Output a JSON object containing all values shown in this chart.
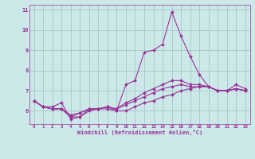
{
  "xlabel": "Windchill (Refroidissement éolien,°C)",
  "ylabel": "",
  "background_color": "#cce8e8",
  "line_color": "#993399",
  "grid_color": "#aacccc",
  "xlim": [
    -0.5,
    23.5
  ],
  "ylim": [
    5.35,
    11.25
  ],
  "yticks": [
    6,
    7,
    8,
    9,
    10,
    11
  ],
  "xticks": [
    0,
    1,
    2,
    3,
    4,
    5,
    6,
    7,
    8,
    9,
    10,
    11,
    12,
    13,
    14,
    15,
    16,
    17,
    18,
    19,
    20,
    21,
    22,
    23
  ],
  "series": [
    [
      6.5,
      6.2,
      6.2,
      6.4,
      5.6,
      5.7,
      6.1,
      6.1,
      6.1,
      6.0,
      7.3,
      7.5,
      8.9,
      9.0,
      9.3,
      10.9,
      9.7,
      8.7,
      7.8,
      7.2,
      7.0,
      7.0,
      7.3,
      7.1
    ],
    [
      6.5,
      6.2,
      6.1,
      6.1,
      5.7,
      5.7,
      6.0,
      6.1,
      6.2,
      6.0,
      6.0,
      6.2,
      6.4,
      6.5,
      6.7,
      6.8,
      7.0,
      7.1,
      7.2,
      7.2,
      7.0,
      7.0,
      7.1,
      7.0
    ],
    [
      6.5,
      6.2,
      6.1,
      6.1,
      5.7,
      5.9,
      6.1,
      6.1,
      6.2,
      6.1,
      6.3,
      6.5,
      6.7,
      6.9,
      7.1,
      7.2,
      7.3,
      7.2,
      7.2,
      7.2,
      7.0,
      7.0,
      7.1,
      7.0
    ],
    [
      6.5,
      6.2,
      6.1,
      6.1,
      5.8,
      5.9,
      6.1,
      6.1,
      6.2,
      6.1,
      6.4,
      6.6,
      6.9,
      7.1,
      7.3,
      7.5,
      7.5,
      7.3,
      7.3,
      7.2,
      7.0,
      7.0,
      7.1,
      7.0
    ]
  ]
}
